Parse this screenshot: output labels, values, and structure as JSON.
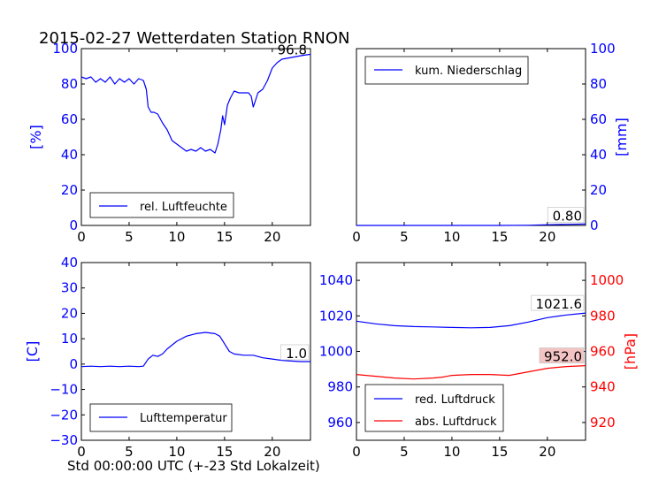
{
  "title": "2015-02-27 Wetterdaten Station RNON",
  "footer_xlabel": "Std 00:00:00 UTC (+-23 Std Lokalzeit)",
  "colors": {
    "primary": "#0000ff",
    "secondary": "#ff0000",
    "value_box_bg": "#f4c4c4"
  },
  "chart_data": [
    {
      "type": "line",
      "ylabel": "[%]",
      "xlim": [
        0,
        24
      ],
      "ylim": [
        0,
        100
      ],
      "x_ticks": [
        "0",
        "5",
        "10",
        "15",
        "20"
      ],
      "y_ticks": [
        "0",
        "20",
        "40",
        "60",
        "80",
        "100"
      ],
      "legend_position": "lower-left",
      "annotation": "96.8",
      "series": [
        {
          "name": "rel. Luftfeuchte",
          "color": "#0000ff",
          "x": [
            0,
            0.5,
            1,
            1.5,
            2,
            2.5,
            3,
            3.5,
            4,
            4.5,
            5,
            5.5,
            6,
            6.5,
            6.8,
            7,
            7.3,
            7.6,
            8,
            8.5,
            9,
            9.5,
            10,
            10.5,
            11,
            11.5,
            12,
            12.5,
            13,
            13.5,
            14,
            14.3,
            14.6,
            14.8,
            15,
            15.3,
            15.6,
            16,
            16.5,
            17,
            17.5,
            17.8,
            18,
            18.2,
            18.5,
            19,
            19.5,
            20,
            20.5,
            21,
            22,
            23,
            24
          ],
          "values": [
            84,
            83,
            84,
            81,
            83,
            81,
            84,
            80,
            83,
            81,
            83,
            80,
            83,
            82,
            77,
            67,
            64,
            64,
            63,
            58,
            54,
            48,
            46,
            44,
            42,
            43,
            42,
            44,
            42,
            43,
            41,
            46,
            54,
            62,
            57,
            68,
            72,
            76,
            75,
            75,
            75,
            73,
            67,
            70,
            75,
            77,
            82,
            89,
            92,
            94,
            95,
            96,
            96.8
          ]
        }
      ]
    },
    {
      "type": "line",
      "ylabel": "[mm]",
      "xlim": [
        0,
        24
      ],
      "ylim": [
        0,
        100
      ],
      "x_ticks": [
        "0",
        "5",
        "10",
        "15",
        "20"
      ],
      "y_ticks": [
        "0",
        "20",
        "40",
        "60",
        "80",
        "100"
      ],
      "legend_position": "upper-left",
      "annotation": "0.80",
      "series": [
        {
          "name": "kum. Niederschlag",
          "color": "#0000ff",
          "x": [
            0,
            5,
            10,
            15,
            18,
            20,
            22,
            24
          ],
          "values": [
            0,
            0,
            0,
            0,
            0.1,
            0.4,
            0.6,
            0.8
          ]
        }
      ]
    },
    {
      "type": "line",
      "ylabel": "[C]",
      "xlim": [
        0,
        24
      ],
      "ylim": [
        -30,
        40
      ],
      "x_ticks": [
        "0",
        "5",
        "10",
        "15",
        "20"
      ],
      "y_ticks": [
        "−30",
        "−20",
        "−10",
        "0",
        "10",
        "20",
        "30",
        "40"
      ],
      "legend_position": "lower-left",
      "annotation": "1.0",
      "series": [
        {
          "name": "Lufttemperatur",
          "color": "#0000ff",
          "x": [
            0,
            1,
            2,
            3,
            4,
            5,
            6,
            6.5,
            7,
            7.5,
            8,
            8.5,
            9,
            10,
            11,
            12,
            13,
            14,
            14.5,
            15,
            15.5,
            16,
            17,
            18,
            19,
            20,
            21,
            22,
            23,
            24
          ],
          "values": [
            -1,
            -0.8,
            -1,
            -0.8,
            -1,
            -0.8,
            -1,
            -0.8,
            2,
            3.5,
            3,
            4,
            6,
            9,
            11,
            12,
            12.5,
            12,
            11,
            8,
            5,
            4,
            3.5,
            3.5,
            2.5,
            2,
            1.5,
            1.2,
            1.0,
            1.0
          ]
        }
      ]
    },
    {
      "type": "line",
      "xlim": [
        0,
        24
      ],
      "ylim": [
        950,
        1050
      ],
      "ylim_right": [
        910,
        1010
      ],
      "ylabel_right": "[hPa]",
      "x_ticks": [
        "0",
        "5",
        "10",
        "15",
        "20"
      ],
      "y_ticks": [
        "960",
        "980",
        "1000",
        "1020",
        "1040"
      ],
      "y_ticks_right": [
        "920",
        "940",
        "960",
        "980",
        "1000"
      ],
      "legend_position": "lower-left",
      "annotations": [
        "1021.6",
        "952.0"
      ],
      "series": [
        {
          "name": "red. Luftdruck",
          "color": "#0000ff",
          "axis": "left",
          "x": [
            0,
            2,
            4,
            6,
            8,
            10,
            12,
            14,
            16,
            18,
            20,
            22,
            24
          ],
          "values": [
            1017,
            1015.5,
            1014.5,
            1014,
            1013.8,
            1013.5,
            1013.3,
            1013.5,
            1014.5,
            1016.5,
            1019,
            1020.5,
            1021.6
          ]
        },
        {
          "name": "abs. Luftdruck",
          "color": "#ff0000",
          "axis": "right",
          "x": [
            0,
            2,
            4,
            6,
            8,
            9,
            10,
            12,
            14,
            16,
            18,
            20,
            22,
            24
          ],
          "values": [
            947,
            946,
            945,
            944.5,
            945,
            945.5,
            946.5,
            947,
            947,
            946.5,
            948.5,
            950.5,
            951.5,
            952.0
          ]
        }
      ]
    }
  ]
}
